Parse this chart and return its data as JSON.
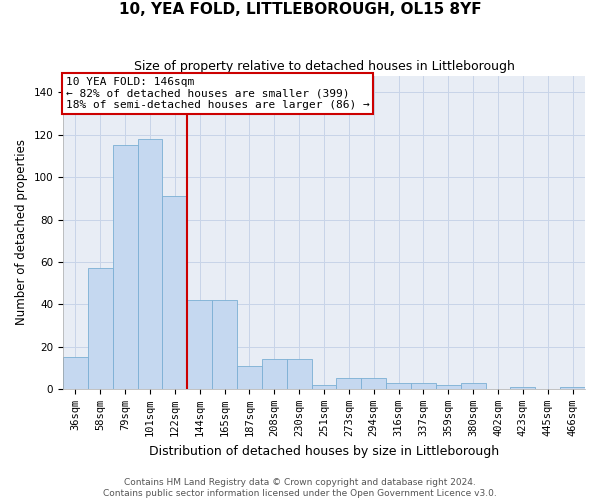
{
  "title": "10, YEA FOLD, LITTLEBOROUGH, OL15 8YF",
  "subtitle": "Size of property relative to detached houses in Littleborough",
  "xlabel": "Distribution of detached houses by size in Littleborough",
  "ylabel": "Number of detached properties",
  "categories": [
    "36sqm",
    "58sqm",
    "79sqm",
    "101sqm",
    "122sqm",
    "144sqm",
    "165sqm",
    "187sqm",
    "208sqm",
    "230sqm",
    "251sqm",
    "273sqm",
    "294sqm",
    "316sqm",
    "337sqm",
    "359sqm",
    "380sqm",
    "402sqm",
    "423sqm",
    "445sqm",
    "466sqm"
  ],
  "values": [
    15,
    57,
    115,
    118,
    91,
    42,
    42,
    11,
    14,
    14,
    2,
    5,
    5,
    3,
    3,
    2,
    3,
    0,
    1,
    0,
    1
  ],
  "bar_color": "#c5d8f0",
  "bar_edge_color": "#7bafd4",
  "vline_index": 5,
  "vline_color": "#cc0000",
  "annotation_line1": "10 YEA FOLD: 146sqm",
  "annotation_line2": "← 82% of detached houses are smaller (399)",
  "annotation_line3": "18% of semi-detached houses are larger (86) →",
  "annotation_box_color": "white",
  "annotation_box_edge_color": "#cc0000",
  "ylim_max": 148,
  "yticks": [
    0,
    20,
    40,
    60,
    80,
    100,
    120,
    140
  ],
  "grid_color": "#c8d4e8",
  "background_color": "#dde6f0",
  "plot_bg_color": "#e8edf5",
  "footer_line1": "Contains HM Land Registry data © Crown copyright and database right 2024.",
  "footer_line2": "Contains public sector information licensed under the Open Government Licence v3.0.",
  "title_fontsize": 11,
  "subtitle_fontsize": 9,
  "xlabel_fontsize": 9,
  "ylabel_fontsize": 8.5,
  "tick_fontsize": 7.5,
  "annotation_fontsize": 8,
  "footer_fontsize": 6.5
}
